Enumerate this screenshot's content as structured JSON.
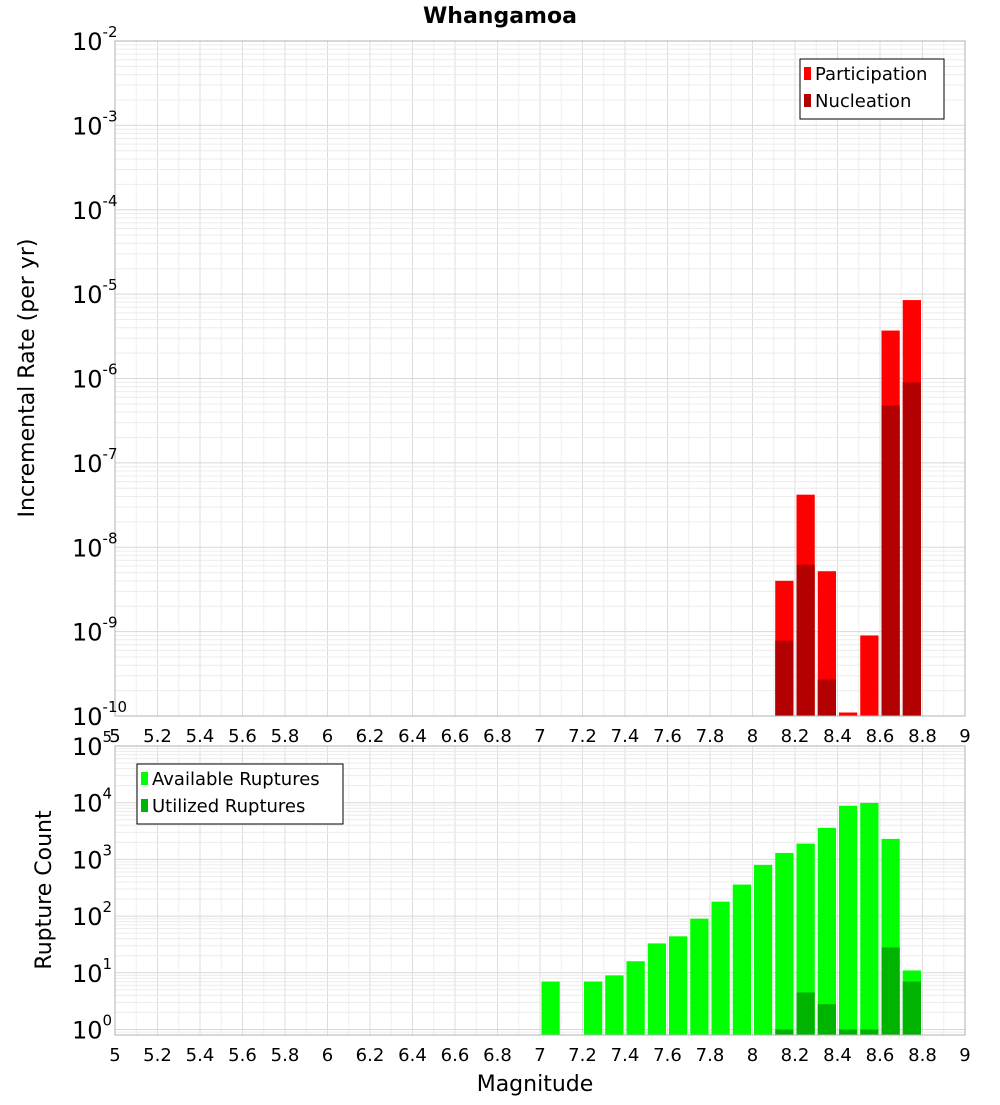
{
  "chart_data": [
    {
      "type": "bar",
      "title": "Whangamoa",
      "ylabel": "Incremental Rate (per yr)",
      "xlabel": "",
      "xlim": [
        5,
        9
      ],
      "ylim": [
        1e-10,
        0.01
      ],
      "yscale": "log",
      "grid": true,
      "legend": "top-right",
      "bin_width": 0.1,
      "x_ticks": [
        "5",
        "5.2",
        "5.4",
        "5.6",
        "5.8",
        "6",
        "6.2",
        "6.4",
        "6.6",
        "6.8",
        "7",
        "7.2",
        "7.4",
        "7.6",
        "7.8",
        "8",
        "8.2",
        "8.4",
        "8.6",
        "8.8",
        "9"
      ],
      "y_ticks": [
        {
          "base": "10",
          "exp": "-2"
        },
        {
          "base": "10",
          "exp": "-3"
        },
        {
          "base": "10",
          "exp": "-4"
        },
        {
          "base": "10",
          "exp": "-5"
        },
        {
          "base": "10",
          "exp": "-6"
        },
        {
          "base": "10",
          "exp": "-7"
        },
        {
          "base": "10",
          "exp": "-8"
        },
        {
          "base": "10",
          "exp": "-9"
        },
        {
          "base": "10",
          "exp": "-10"
        }
      ],
      "series": [
        {
          "name": "Participation",
          "color": "#ff0000",
          "x": [
            8.15,
            8.25,
            8.35,
            8.45,
            8.55,
            8.65,
            8.75
          ],
          "values": [
            4e-09,
            4.2e-08,
            5.2e-09,
            1.1e-10,
            9e-10,
            3.7e-06,
            8.5e-06
          ]
        },
        {
          "name": "Nucleation",
          "color": "#b30000",
          "x": [
            8.15,
            8.25,
            8.35,
            8.65,
            8.75
          ],
          "values": [
            7.8e-10,
            6.2e-09,
            2.7e-10,
            4.8e-07,
            9e-07
          ]
        }
      ]
    },
    {
      "type": "bar",
      "title": "",
      "ylabel": "Rupture Count",
      "xlabel": "Magnitude",
      "xlim": [
        5,
        9
      ],
      "ylim": [
        0.8,
        100000.0
      ],
      "yscale": "log",
      "grid": true,
      "legend": "top-left",
      "bin_width": 0.1,
      "x_ticks": [
        "5",
        "5.2",
        "5.4",
        "5.6",
        "5.8",
        "6",
        "6.2",
        "6.4",
        "6.6",
        "6.8",
        "7",
        "7.2",
        "7.4",
        "7.6",
        "7.8",
        "8",
        "8.2",
        "8.4",
        "8.6",
        "8.8",
        "9"
      ],
      "y_ticks": [
        {
          "base": "10",
          "exp": "5"
        },
        {
          "base": "10",
          "exp": "4"
        },
        {
          "base": "10",
          "exp": "3"
        },
        {
          "base": "10",
          "exp": "2"
        },
        {
          "base": "10",
          "exp": "1"
        },
        {
          "base": "10",
          "exp": "0"
        }
      ],
      "series": [
        {
          "name": "Available Ruptures",
          "color": "#00ff00",
          "x": [
            7.05,
            7.25,
            7.35,
            7.45,
            7.55,
            7.65,
            7.75,
            7.85,
            7.95,
            8.05,
            8.15,
            8.25,
            8.35,
            8.45,
            8.55,
            8.65,
            8.75
          ],
          "values": [
            7,
            7,
            9,
            16,
            33,
            44,
            90,
            180,
            360,
            800,
            1300,
            1900,
            3600,
            8800,
            9900,
            2300,
            11
          ]
        },
        {
          "name": "Utilized Ruptures",
          "color": "#00b300",
          "x": [
            8.15,
            8.25,
            8.35,
            8.45,
            8.55,
            8.65,
            8.75
          ],
          "values": [
            1,
            4.5,
            2.8,
            1,
            1,
            28,
            7
          ]
        }
      ]
    }
  ]
}
